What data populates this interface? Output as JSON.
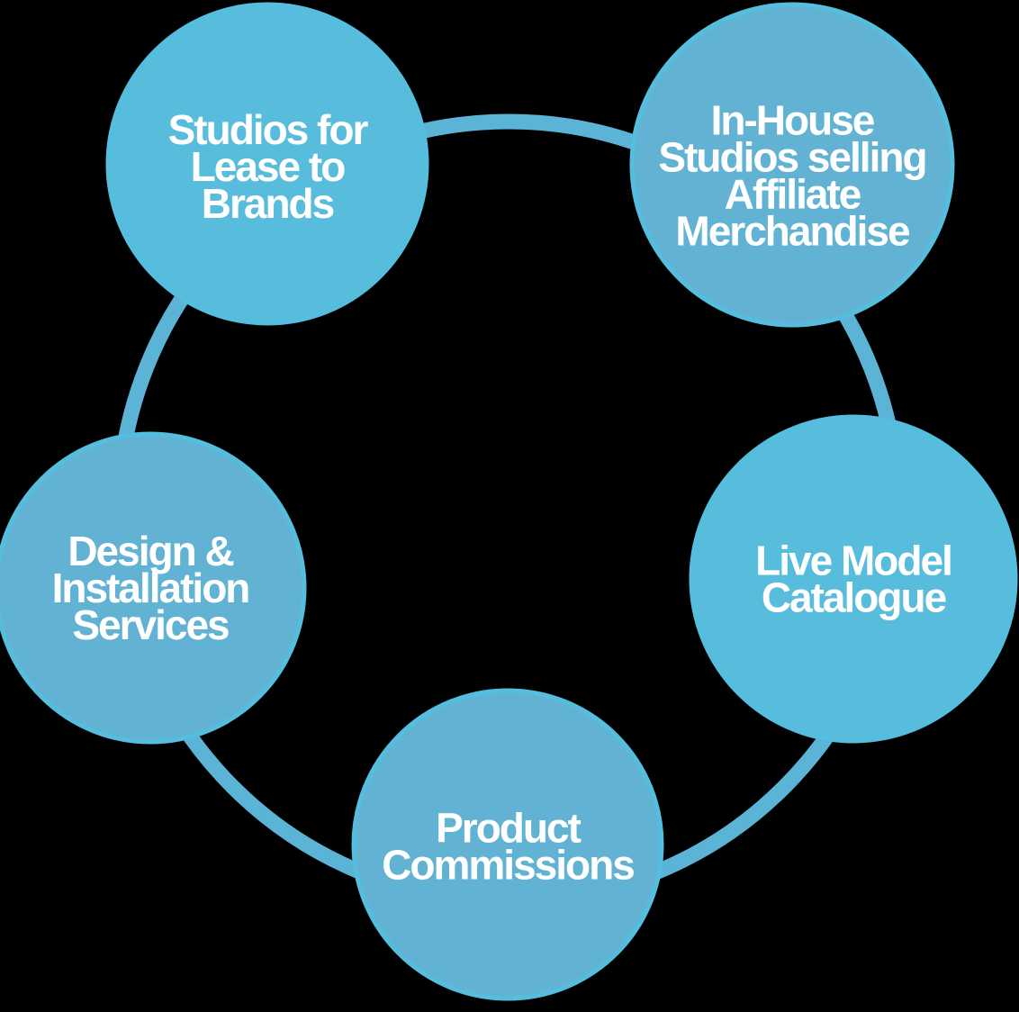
{
  "colors": {
    "background": "#000000",
    "ring": "#5bb3d6",
    "node_fill_bright": "#58bcdc",
    "node_fill_muted": "#62b3d3",
    "node_edge": "#55bddd",
    "label": "#ffffff"
  },
  "nodes": [
    {
      "id": "studios-lease",
      "lines": [
        "Studios for",
        "Lease to",
        "Brands"
      ]
    },
    {
      "id": "in-house-studios",
      "lines": [
        "In-House",
        "Studios selling",
        "Affiliate",
        "Merchandise"
      ]
    },
    {
      "id": "live-model",
      "lines": [
        "Live Model",
        "Catalogue"
      ]
    },
    {
      "id": "product-commissions",
      "lines": [
        "Product",
        "Commissions"
      ]
    },
    {
      "id": "design-installation",
      "lines": [
        "Design &",
        "Installation",
        "Services"
      ]
    }
  ]
}
